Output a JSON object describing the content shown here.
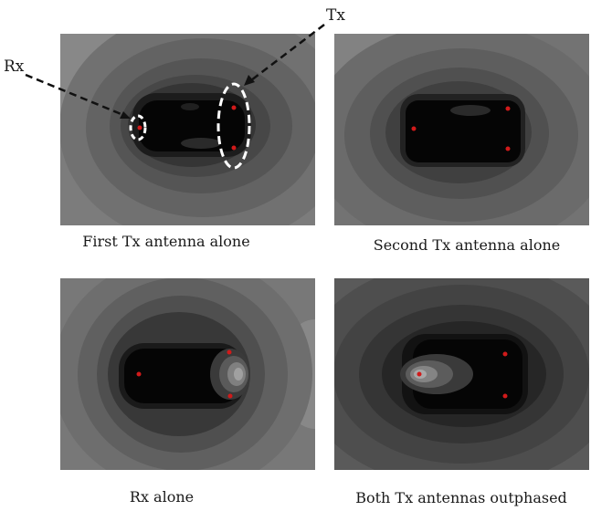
{
  "annotations": {
    "rx_label": "Rx",
    "tx_label": "Tx"
  },
  "panels": [
    {
      "caption": "First Tx antenna alone"
    },
    {
      "caption": "Second Tx antenna alone"
    },
    {
      "caption": "Rx alone"
    },
    {
      "caption": "Both Tx antennas outphased"
    }
  ],
  "colors": {
    "antenna_dot": "#d11a1a",
    "field_dark": "#000000",
    "field_light": "#8a8a8a"
  }
}
